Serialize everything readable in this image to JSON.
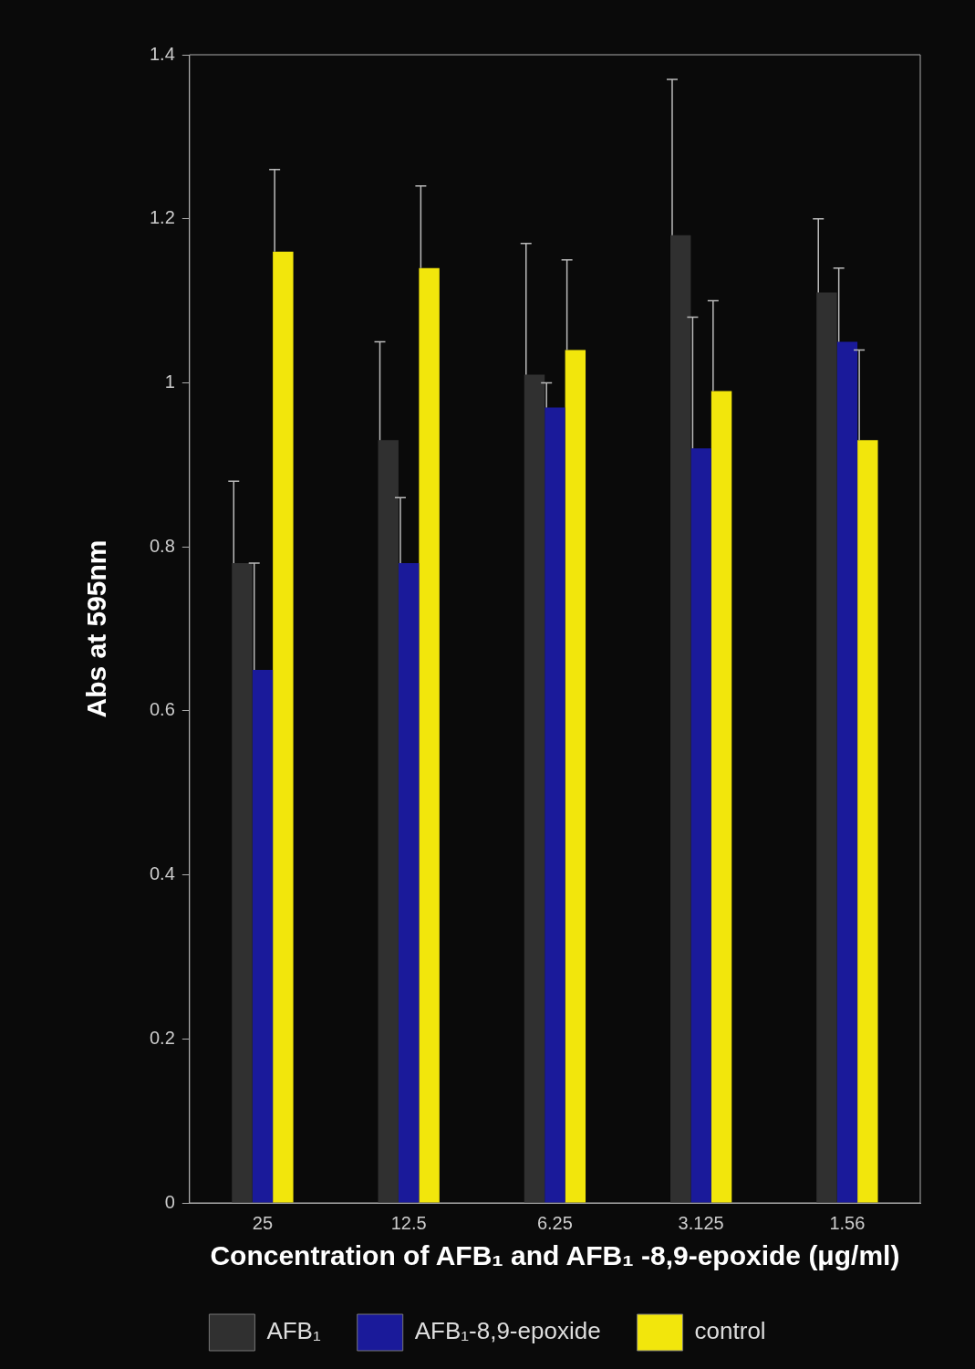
{
  "chart_data": {
    "type": "bar",
    "xlabel": "Concentration of AFB₁ and AFB₁ -8,9-epoxide (μg/ml)",
    "ylabel": "Abs at 595nm",
    "categories": [
      "25",
      "12.5",
      "6.25",
      "3.125",
      "1.56"
    ],
    "series": [
      {
        "name": "AFB₁",
        "color": "#303030",
        "values": [
          0.78,
          0.93,
          1.01,
          1.18,
          1.11
        ],
        "errors": [
          [
            0.78,
            0.88
          ],
          [
            0.93,
            1.05
          ],
          [
            1.01,
            1.17
          ],
          [
            1.18,
            1.37
          ],
          [
            1.11,
            1.2
          ]
        ]
      },
      {
        "name": "AFB₁-8,9-epoxide",
        "color": "#1a1a9a",
        "values": [
          0.65,
          0.78,
          0.97,
          0.92,
          1.05
        ],
        "errors": [
          [
            0.65,
            0.78
          ],
          [
            0.78,
            0.86
          ],
          [
            0.97,
            1.0
          ],
          [
            0.92,
            1.08
          ],
          [
            1.05,
            1.14
          ]
        ]
      },
      {
        "name": "control",
        "color": "#f2e60c",
        "values": [
          1.16,
          1.14,
          1.04,
          0.99,
          0.93
        ],
        "errors": [
          [
            1.16,
            1.26
          ],
          [
            1.14,
            1.24
          ],
          [
            1.04,
            1.15
          ],
          [
            0.99,
            1.1
          ],
          [
            0.93,
            1.04
          ]
        ]
      }
    ],
    "ylim": [
      0,
      1.4
    ],
    "yticks": [
      0,
      0.2,
      0.4,
      0.6,
      0.8,
      1,
      1.2,
      1.4
    ],
    "grid": false,
    "legend": "bottom"
  }
}
